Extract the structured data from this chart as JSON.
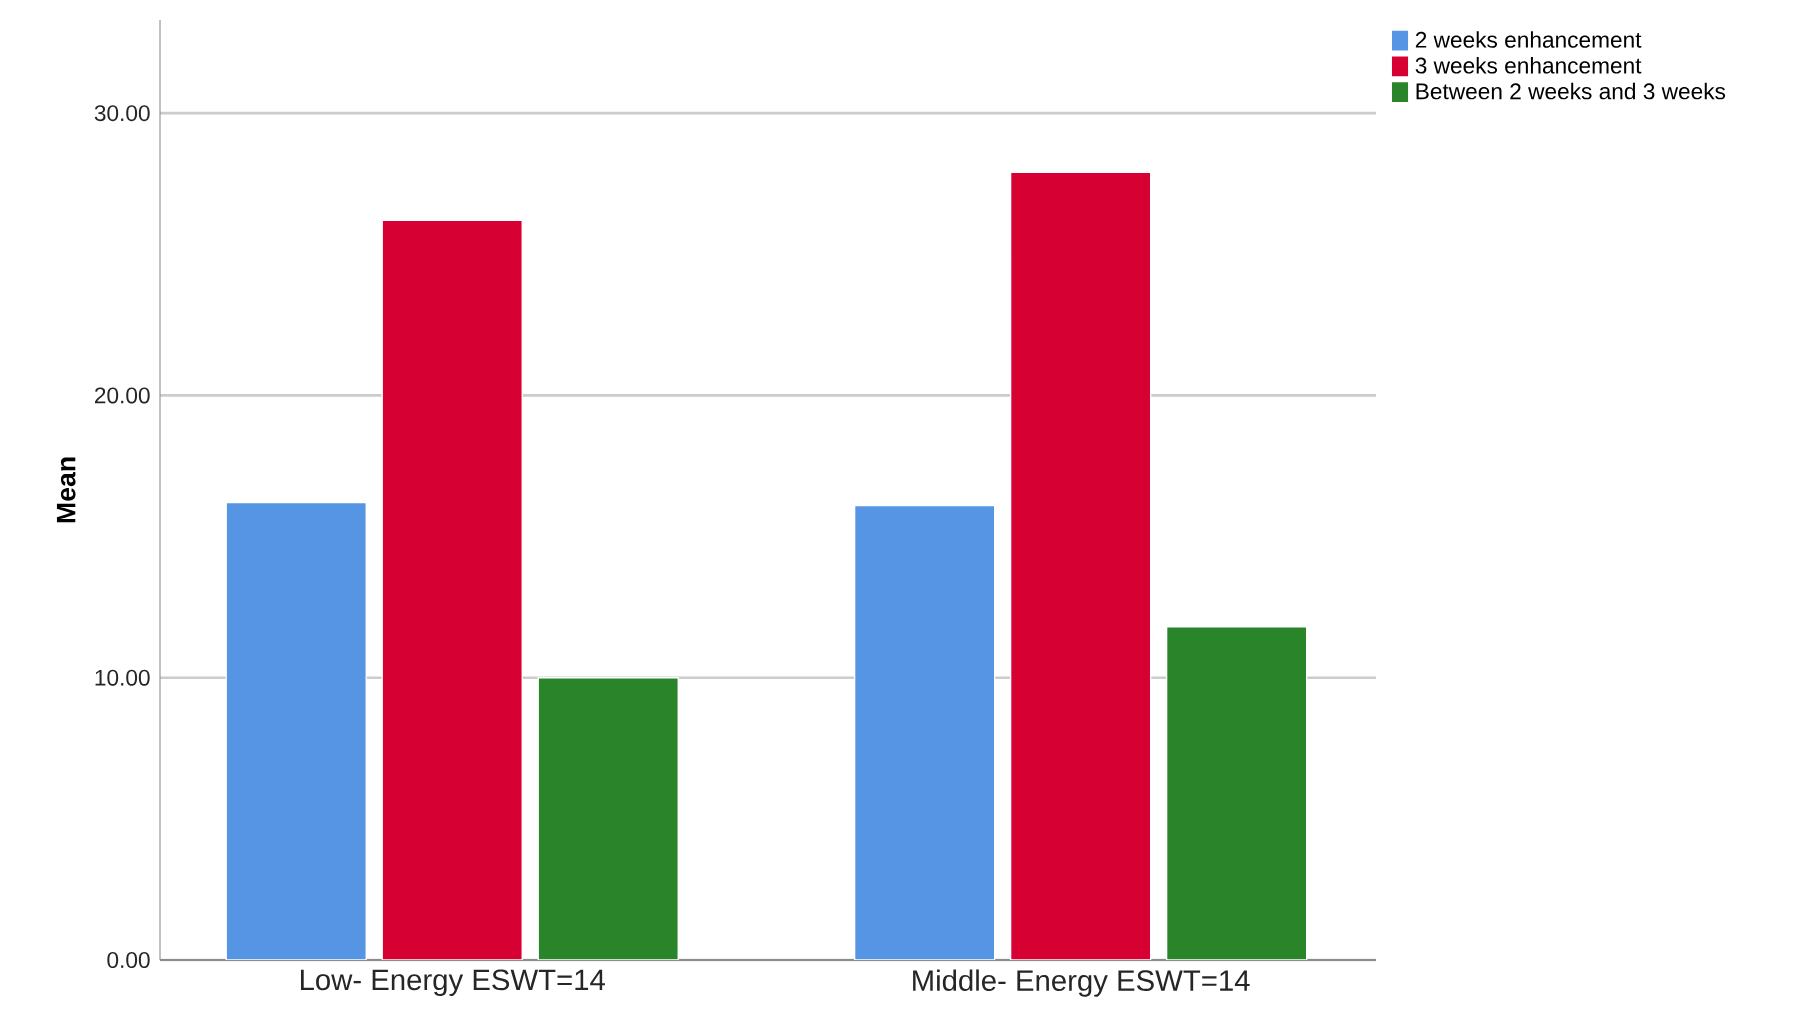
{
  "chart_data": {
    "type": "bar",
    "ylabel": "Mean",
    "categories": [
      "Low- Energy ESWT=14",
      "Middle- Energy ESWT=14"
    ],
    "series": [
      {
        "name": "2 weeks enhancement",
        "color": "#5595e3",
        "values": [
          16.2,
          16.1
        ]
      },
      {
        "name": "3 weeks enhancement",
        "color": "#d60032",
        "values": [
          26.2,
          27.9
        ]
      },
      {
        "name": "Between 2 weeks and 3 weeks",
        "color": "#2a852a",
        "values": [
          10.0,
          11.8
        ]
      }
    ],
    "ylim": [
      0,
      33.3
    ],
    "yticks": [
      {
        "value": 0,
        "label": "0.00"
      },
      {
        "value": 10,
        "label": "10.00"
      },
      {
        "value": 20,
        "label": "20.00"
      },
      {
        "value": 30,
        "label": "30.00"
      }
    ],
    "grid": "y",
    "legend": "top right"
  }
}
